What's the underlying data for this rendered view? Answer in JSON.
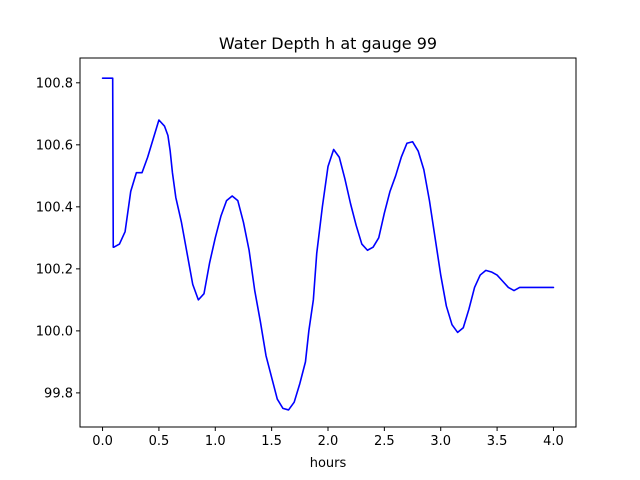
{
  "chart_data": {
    "type": "line",
    "title": "Water Depth h at gauge 99",
    "xlabel": "hours",
    "ylabel": "",
    "xlim": [
      -0.2,
      4.2
    ],
    "ylim": [
      99.69,
      100.88
    ],
    "xticks": [
      0.0,
      0.5,
      1.0,
      1.5,
      2.0,
      2.5,
      3.0,
      3.5,
      4.0
    ],
    "xtick_labels": [
      "0.0",
      "0.5",
      "1.0",
      "1.5",
      "2.0",
      "2.5",
      "3.0",
      "3.5",
      "4.0"
    ],
    "yticks": [
      99.8,
      100.0,
      100.2,
      100.4,
      100.6,
      100.8
    ],
    "ytick_labels": [
      "99.8",
      "100.0",
      "100.2",
      "100.4",
      "100.6",
      "100.8"
    ],
    "grid": false,
    "series": [
      {
        "color": "#0000ff",
        "x": [
          0.0,
          0.05,
          0.09,
          0.095,
          0.1,
          0.15,
          0.2,
          0.25,
          0.3,
          0.35,
          0.4,
          0.45,
          0.5,
          0.55,
          0.58,
          0.6,
          0.62,
          0.65,
          0.7,
          0.75,
          0.8,
          0.85,
          0.9,
          0.95,
          1.0,
          1.05,
          1.1,
          1.15,
          1.2,
          1.25,
          1.3,
          1.35,
          1.4,
          1.45,
          1.5,
          1.55,
          1.6,
          1.65,
          1.7,
          1.75,
          1.8,
          1.83,
          1.87,
          1.9,
          1.95,
          2.0,
          2.05,
          2.1,
          2.15,
          2.2,
          2.25,
          2.3,
          2.35,
          2.4,
          2.45,
          2.5,
          2.55,
          2.6,
          2.65,
          2.7,
          2.75,
          2.8,
          2.85,
          2.9,
          2.95,
          3.0,
          3.05,
          3.1,
          3.15,
          3.2,
          3.25,
          3.3,
          3.35,
          3.4,
          3.45,
          3.5,
          3.55,
          3.6,
          3.65,
          3.7,
          3.75,
          3.8,
          3.85,
          3.9,
          3.95,
          4.0
        ],
        "values": [
          100.815,
          100.815,
          100.815,
          100.27,
          100.27,
          100.28,
          100.32,
          100.45,
          100.51,
          100.51,
          100.56,
          100.62,
          100.68,
          100.66,
          100.63,
          100.58,
          100.51,
          100.43,
          100.35,
          100.25,
          100.15,
          100.1,
          100.12,
          100.22,
          100.3,
          100.37,
          100.42,
          100.435,
          100.42,
          100.35,
          100.26,
          100.13,
          100.03,
          99.92,
          99.85,
          99.78,
          99.75,
          99.745,
          99.77,
          99.83,
          99.9,
          100.0,
          100.1,
          100.25,
          100.4,
          100.53,
          100.585,
          100.56,
          100.49,
          100.41,
          100.34,
          100.28,
          100.26,
          100.27,
          100.3,
          100.38,
          100.45,
          100.5,
          100.56,
          100.605,
          100.61,
          100.58,
          100.52,
          100.42,
          100.3,
          100.18,
          100.08,
          100.02,
          99.995,
          100.01,
          100.07,
          100.14,
          100.18,
          100.195,
          100.19,
          100.18,
          100.16,
          100.14,
          100.13,
          100.14,
          100.14,
          100.14,
          100.14,
          100.14,
          100.14,
          100.14
        ]
      }
    ]
  }
}
